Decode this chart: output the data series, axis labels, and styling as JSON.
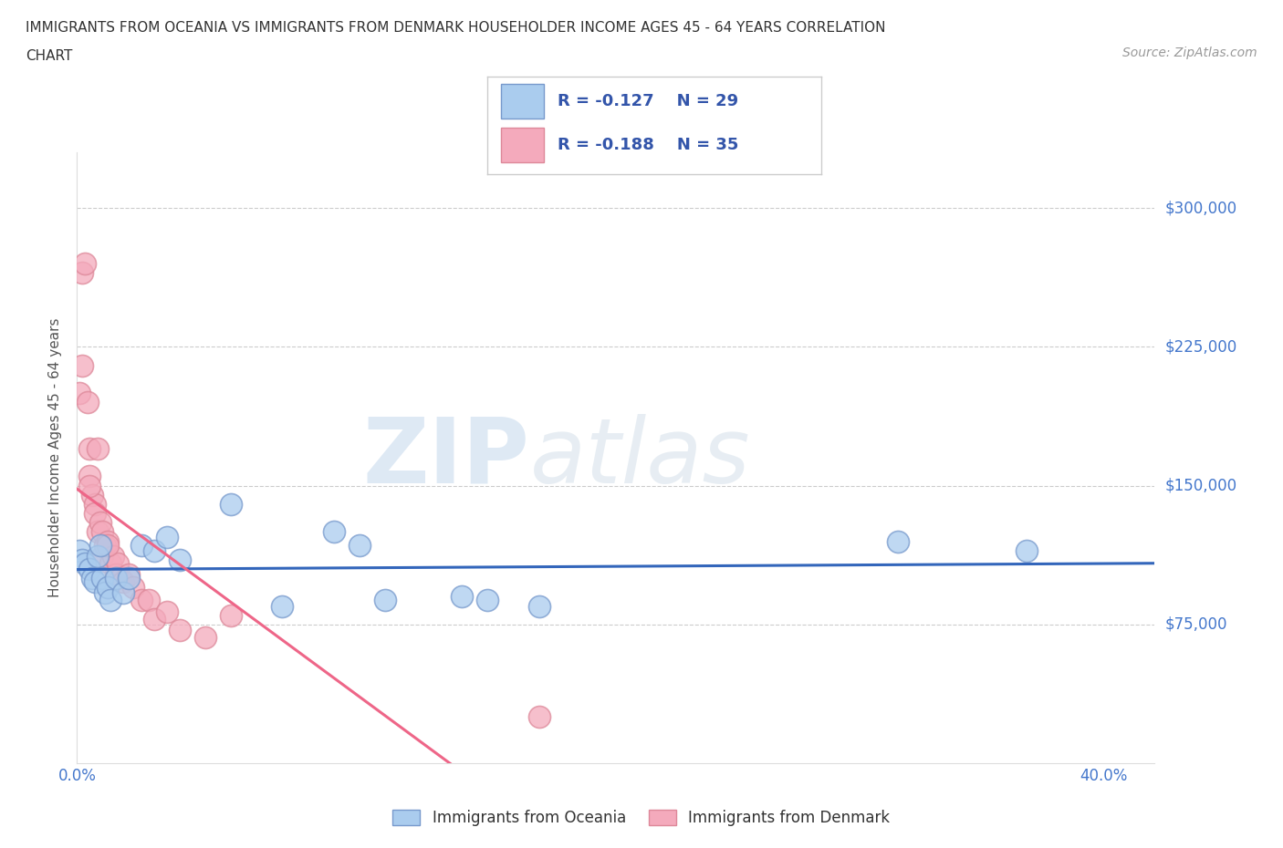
{
  "title_line1": "IMMIGRANTS FROM OCEANIA VS IMMIGRANTS FROM DENMARK HOUSEHOLDER INCOME AGES 45 - 64 YEARS CORRELATION",
  "title_line2": "CHART",
  "source": "Source: ZipAtlas.com",
  "ylabel": "Householder Income Ages 45 - 64 years",
  "xlim": [
    0.0,
    0.42
  ],
  "ylim": [
    0,
    330000
  ],
  "yticks": [
    75000,
    150000,
    225000,
    300000
  ],
  "ytick_labels": [
    "$75,000",
    "$150,000",
    "$225,000",
    "$300,000"
  ],
  "xticks": [
    0.0,
    0.05,
    0.1,
    0.15,
    0.2,
    0.25,
    0.3,
    0.35,
    0.4
  ],
  "xtick_labels": [
    "0.0%",
    "",
    "",
    "",
    "",
    "",
    "",
    "",
    "40.0%"
  ],
  "oceania_color": "#aaccee",
  "oceania_edge": "#7799cc",
  "denmark_color": "#f4aabc",
  "denmark_edge": "#dd8899",
  "oceania_line_color": "#3366bb",
  "denmark_line_color": "#ee6688",
  "denmark_dash_color": "#f4aabc",
  "R_oceania": -0.127,
  "N_oceania": 29,
  "R_denmark": -0.188,
  "N_denmark": 35,
  "watermark_zip": "ZIP",
  "watermark_atlas": "atlas",
  "grid_color": "#cccccc",
  "background_color": "#ffffff",
  "oceania_x": [
    0.001,
    0.002,
    0.003,
    0.005,
    0.006,
    0.007,
    0.008,
    0.009,
    0.01,
    0.011,
    0.012,
    0.013,
    0.015,
    0.018,
    0.02,
    0.025,
    0.03,
    0.035,
    0.04,
    0.06,
    0.08,
    0.1,
    0.11,
    0.12,
    0.15,
    0.16,
    0.18,
    0.32,
    0.37
  ],
  "oceania_y": [
    115000,
    110000,
    108000,
    105000,
    100000,
    98000,
    112000,
    118000,
    100000,
    92000,
    95000,
    88000,
    100000,
    92000,
    100000,
    118000,
    115000,
    122000,
    110000,
    140000,
    85000,
    125000,
    118000,
    88000,
    90000,
    88000,
    85000,
    120000,
    115000
  ],
  "denmark_x": [
    0.001,
    0.002,
    0.002,
    0.003,
    0.004,
    0.005,
    0.005,
    0.006,
    0.007,
    0.007,
    0.008,
    0.009,
    0.01,
    0.01,
    0.011,
    0.012,
    0.013,
    0.014,
    0.015,
    0.016,
    0.017,
    0.018,
    0.02,
    0.022,
    0.025,
    0.028,
    0.03,
    0.035,
    0.04,
    0.05,
    0.06,
    0.005,
    0.008,
    0.012,
    0.18
  ],
  "denmark_y": [
    200000,
    215000,
    265000,
    270000,
    195000,
    155000,
    170000,
    145000,
    140000,
    135000,
    125000,
    130000,
    112000,
    125000,
    118000,
    120000,
    108000,
    112000,
    102000,
    108000,
    100000,
    98000,
    102000,
    95000,
    88000,
    88000,
    78000,
    82000,
    72000,
    68000,
    80000,
    150000,
    170000,
    118000,
    25000
  ]
}
